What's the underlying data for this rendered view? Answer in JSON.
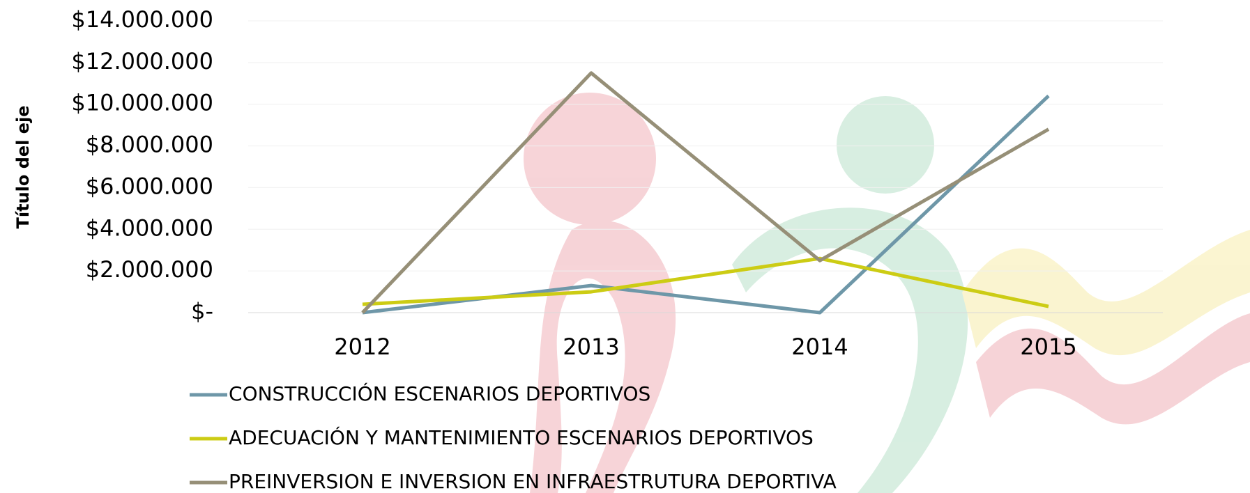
{
  "chart_data": {
    "type": "line",
    "y_axis_title": "Título del eje",
    "categories": [
      "2012",
      "2013",
      "2014",
      "2015"
    ],
    "series": [
      {
        "name": "CONSTRUCCIÓN ESCENARIOS DEPORTIVOS",
        "color": "#6e97a8",
        "values": [
          0,
          1300000,
          0,
          10400000
        ]
      },
      {
        "name": "ADECUACIÓN Y MANTENIMIENTO ESCENARIOS DEPORTIVOS",
        "color": "#cccc14",
        "values": [
          400000,
          1000000,
          2600000,
          300000
        ]
      },
      {
        "name": "PREINVERSION E INVERSION EN INFRAESTRUTURA DEPORTIVA",
        "color": "#968f77",
        "values": [
          0,
          11500000,
          2500000,
          8800000
        ]
      }
    ],
    "ylim": [
      0,
      14000000
    ],
    "yticks": [
      {
        "value": 0,
        "label": "$-"
      },
      {
        "value": 2000000,
        "label": "$2.000.000"
      },
      {
        "value": 4000000,
        "label": "$4.000.000"
      },
      {
        "value": 6000000,
        "label": "$6.000.000"
      },
      {
        "value": 8000000,
        "label": "$8.000.000"
      },
      {
        "value": 10000000,
        "label": "$10.000.000"
      },
      {
        "value": 12000000,
        "label": "$12.000.000"
      },
      {
        "value": 14000000,
        "label": "$14.000.000"
      }
    ],
    "grid": true,
    "legend": "bottom"
  }
}
